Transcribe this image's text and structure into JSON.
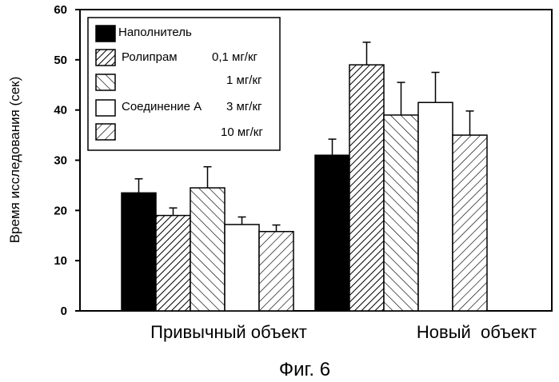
{
  "chart_data": {
    "type": "bar",
    "ylabel": "Время исследования (сек)",
    "ylim": [
      0,
      60
    ],
    "yticks": [
      0,
      10,
      20,
      30,
      40,
      50,
      60
    ],
    "categories": [
      "Привычный объект",
      "Новый  объект"
    ],
    "series": [
      {
        "name": "Наполнитель",
        "values": [
          23.5,
          31
        ],
        "errors": [
          2.8,
          3.2
        ],
        "fill": "solid-black"
      },
      {
        "name": "0,1 мг/кг",
        "values": [
          19,
          49
        ],
        "errors": [
          1.5,
          4.5
        ],
        "fill": "hatch-dense-diagonal"
      },
      {
        "name": "1 мг/кг",
        "values": [
          24.5,
          39
        ],
        "errors": [
          4.2,
          6.5
        ],
        "fill": "hatch-backslash"
      },
      {
        "name": "3 мг/кг",
        "values": [
          17.2,
          41.5
        ],
        "errors": [
          1.5,
          6.0
        ],
        "fill": "white"
      },
      {
        "name": "10 мг/кг",
        "values": [
          15.8,
          35
        ],
        "errors": [
          1.3,
          4.8
        ],
        "fill": "hatch-slash"
      }
    ],
    "legend": {
      "placement": "top-left",
      "entries": [
        {
          "text": "Наполнитель",
          "dose": ""
        },
        {
          "text": "Ролипрам",
          "dose": "0,1 мг/кг"
        },
        {
          "text": "",
          "dose": "1 мг/кг"
        },
        {
          "text": "Соединение А",
          "dose": "3 мг/кг"
        },
        {
          "text": "",
          "dose": "10 мг/кг"
        }
      ]
    },
    "grid": false,
    "caption": "Фиг. 6"
  }
}
